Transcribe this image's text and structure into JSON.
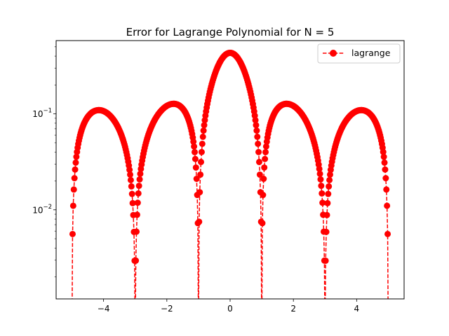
{
  "chart_data": {
    "type": "line",
    "title": "Error for Lagrange Polynomial for N = 5",
    "xlabel": "",
    "ylabel": "",
    "yscale": "log",
    "xlim": [
      -5.5,
      5.5
    ],
    "ylim": [
      0.00118,
      0.58
    ],
    "xticks": [
      -4,
      -2,
      0,
      2,
      4
    ],
    "xtick_labels": [
      "−4",
      "−2",
      "0",
      "2",
      "4"
    ],
    "yticks": [
      0.01,
      0.1
    ],
    "ytick_labels": [
      {
        "base": "10",
        "exp": "−2"
      },
      {
        "base": "10",
        "exp": "−1"
      }
    ],
    "legend_position": "upper right",
    "grid": false,
    "series": [
      {
        "name": "lagrange",
        "color": "#ff0000",
        "linestyle": "dashed",
        "marker": "circle",
        "x_range": [
          -5,
          5
        ],
        "num_points": 501,
        "description_function": "|f(x) - P5(x)| with nodes -5,-3,-1,1,3,5"
      }
    ]
  }
}
